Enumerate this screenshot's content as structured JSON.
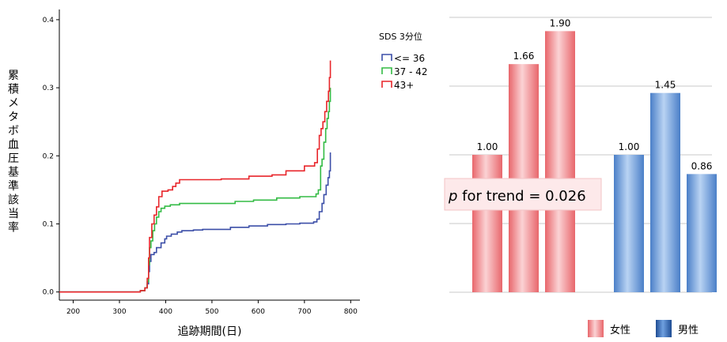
{
  "colors": {
    "low": "#3c4fa8",
    "mid": "#33bb44",
    "high": "#e8262b",
    "female_bar": "#f08a8a",
    "male_bar": "#6f9fdc",
    "trend_box": "#fde9ea"
  },
  "chart_data": [
    {
      "type": "line",
      "xlabel": "追跡期間(日)",
      "ylabel": "累積メタボ血圧基準該当率",
      "xlim": [
        170,
        820
      ],
      "ylim": [
        -0.012,
        0.415
      ],
      "x_ticks": [
        "200",
        "300",
        "400",
        "500",
        "600",
        "700",
        "800"
      ],
      "y_ticks": [
        "0.0",
        "0.1",
        "0.2",
        "0.3",
        "0.4"
      ],
      "grid": false,
      "legend_title": "SDS 3分位",
      "legend_position": "right-outside",
      "series": [
        {
          "name": "<= 36",
          "color_key": "low",
          "points": [
            [
              170,
              0
            ],
            [
              320,
              0
            ],
            [
              345,
              0.002
            ],
            [
              355,
              0.006
            ],
            [
              360,
              0.012
            ],
            [
              363,
              0.03
            ],
            [
              365,
              0.045
            ],
            [
              368,
              0.055
            ],
            [
              375,
              0.058
            ],
            [
              380,
              0.065
            ],
            [
              390,
              0.072
            ],
            [
              398,
              0.078
            ],
            [
              402,
              0.082
            ],
            [
              412,
              0.085
            ],
            [
              425,
              0.088
            ],
            [
              435,
              0.09
            ],
            [
              460,
              0.091
            ],
            [
              480,
              0.092
            ],
            [
              540,
              0.095
            ],
            [
              580,
              0.097
            ],
            [
              620,
              0.099
            ],
            [
              660,
              0.1
            ],
            [
              690,
              0.101
            ],
            [
              720,
              0.103
            ],
            [
              727,
              0.107
            ],
            [
              732,
              0.118
            ],
            [
              738,
              0.13
            ],
            [
              742,
              0.143
            ],
            [
              747,
              0.157
            ],
            [
              751,
              0.168
            ],
            [
              754,
              0.178
            ],
            [
              756,
              0.205
            ]
          ]
        },
        {
          "name": "37 - 42",
          "color_key": "mid",
          "points": [
            [
              170,
              0
            ],
            [
              320,
              0
            ],
            [
              345,
              0.002
            ],
            [
              355,
              0.006
            ],
            [
              360,
              0.015
            ],
            [
              363,
              0.04
            ],
            [
              365,
              0.065
            ],
            [
              368,
              0.075
            ],
            [
              372,
              0.09
            ],
            [
              376,
              0.1
            ],
            [
              380,
              0.11
            ],
            [
              385,
              0.118
            ],
            [
              390,
              0.123
            ],
            [
              398,
              0.126
            ],
            [
              410,
              0.128
            ],
            [
              430,
              0.13
            ],
            [
              480,
              0.13
            ],
            [
              550,
              0.133
            ],
            [
              590,
              0.135
            ],
            [
              640,
              0.138
            ],
            [
              690,
              0.14
            ],
            [
              725,
              0.144
            ],
            [
              730,
              0.15
            ],
            [
              735,
              0.185
            ],
            [
              738,
              0.195
            ],
            [
              742,
              0.22
            ],
            [
              746,
              0.24
            ],
            [
              749,
              0.255
            ],
            [
              752,
              0.265
            ],
            [
              754,
              0.28
            ],
            [
              756,
              0.3
            ]
          ]
        },
        {
          "name": "43+",
          "color_key": "high",
          "points": [
            [
              170,
              0
            ],
            [
              320,
              0
            ],
            [
              345,
              0.002
            ],
            [
              355,
              0.006
            ],
            [
              360,
              0.02
            ],
            [
              363,
              0.05
            ],
            [
              365,
              0.08
            ],
            [
              370,
              0.1
            ],
            [
              375,
              0.113
            ],
            [
              380,
              0.125
            ],
            [
              385,
              0.14
            ],
            [
              392,
              0.148
            ],
            [
              405,
              0.15
            ],
            [
              415,
              0.155
            ],
            [
              422,
              0.16
            ],
            [
              430,
              0.165
            ],
            [
              480,
              0.165
            ],
            [
              520,
              0.166
            ],
            [
              580,
              0.17
            ],
            [
              630,
              0.172
            ],
            [
              660,
              0.178
            ],
            [
              700,
              0.185
            ],
            [
              722,
              0.19
            ],
            [
              728,
              0.21
            ],
            [
              732,
              0.23
            ],
            [
              736,
              0.24
            ],
            [
              740,
              0.25
            ],
            [
              744,
              0.265
            ],
            [
              748,
              0.28
            ],
            [
              752,
              0.295
            ],
            [
              754,
              0.315
            ],
            [
              756,
              0.34
            ]
          ]
        }
      ]
    },
    {
      "type": "bar",
      "groups": [
        {
          "name": "女性",
          "color_key": "female_bar",
          "values": [
            1.0,
            1.66,
            1.9
          ]
        },
        {
          "name": "男性",
          "color_key": "male_bar",
          "values": [
            1.0,
            1.45,
            0.86
          ]
        }
      ],
      "data_labels": [
        "1.00",
        "1.66",
        "1.90",
        "1.00",
        "1.45",
        "0.86"
      ],
      "ylim": [
        0,
        2.0
      ],
      "grid": true,
      "legend_position": "bottom-right",
      "annotation": {
        "italic": "p",
        "text": " for trend = 0.026"
      }
    }
  ]
}
